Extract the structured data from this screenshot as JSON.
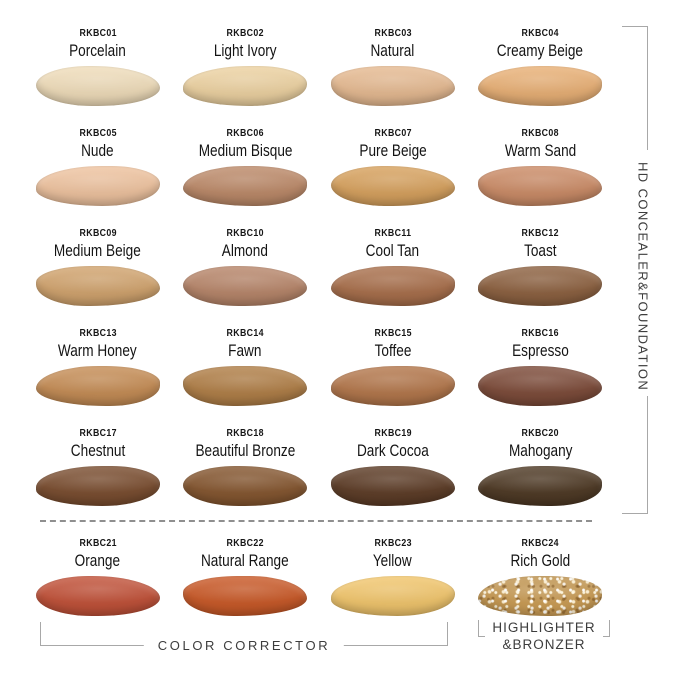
{
  "page": {
    "right_section_label": "HD CONCEALER&FOUNDATION",
    "bottom_section_label": "COLOR CORRECTOR",
    "bottom_right_section_label_line1": "HIGHLIGHTER",
    "bottom_right_section_label_line2": "&BRONZER"
  },
  "theme": {
    "background": "#ffffff",
    "text_color": "#161616",
    "section_label_color": "#3d3d3d",
    "bracket_line_color": "#a8a8a8"
  },
  "swatches": [
    {
      "code": "RKBC01",
      "name": "Porcelain",
      "color": "#f1debb"
    },
    {
      "code": "RKBC02",
      "name": "Light Ivory",
      "color": "#eed3a2"
    },
    {
      "code": "RKBC03",
      "name": "Natural",
      "color": "#e7bb92"
    },
    {
      "code": "RKBC04",
      "name": "Creamy Beige",
      "color": "#eab176"
    },
    {
      "code": "RKBC05",
      "name": "Nude",
      "color": "#f0c4a0"
    },
    {
      "code": "RKBC06",
      "name": "Medium Bisque",
      "color": "#bd8a69"
    },
    {
      "code": "RKBC07",
      "name": "Pure Beige",
      "color": "#d8a25e"
    },
    {
      "code": "RKBC08",
      "name": "Warm Sand",
      "color": "#cc8c67"
    },
    {
      "code": "RKBC09",
      "name": "Medium Beige",
      "color": "#d2a46e"
    },
    {
      "code": "RKBC10",
      "name": "Almond",
      "color": "#b8866a"
    },
    {
      "code": "RKBC11",
      "name": "Cool Tan",
      "color": "#a96f4b"
    },
    {
      "code": "RKBC12",
      "name": "Toast",
      "color": "#8d6140"
    },
    {
      "code": "RKBC13",
      "name": "Warm Honey",
      "color": "#c68d55"
    },
    {
      "code": "RKBC14",
      "name": "Fawn",
      "color": "#b17f47"
    },
    {
      "code": "RKBC15",
      "name": "Toffee",
      "color": "#b4774b"
    },
    {
      "code": "RKBC16",
      "name": "Espresso",
      "color": "#7d4b39"
    },
    {
      "code": "RKBC17",
      "name": "Chestnut",
      "color": "#7a4d2f"
    },
    {
      "code": "RKBC18",
      "name": "Beautiful Bronze",
      "color": "#85562f"
    },
    {
      "code": "RKBC19",
      "name": "Dark Cocoa",
      "color": "#5d3c26"
    },
    {
      "code": "RKBC20",
      "name": "Mahogany",
      "color": "#4e3924"
    },
    {
      "code": "RKBC21",
      "name": "Orange",
      "color": "#c25138"
    },
    {
      "code": "RKBC22",
      "name": "Natural Range",
      "color": "#ca5927"
    },
    {
      "code": "RKBC23",
      "name": "Yellow",
      "color": "#f3c76d"
    },
    {
      "code": "RKBC24",
      "name": "Rich Gold",
      "color": "#c09552"
    }
  ]
}
